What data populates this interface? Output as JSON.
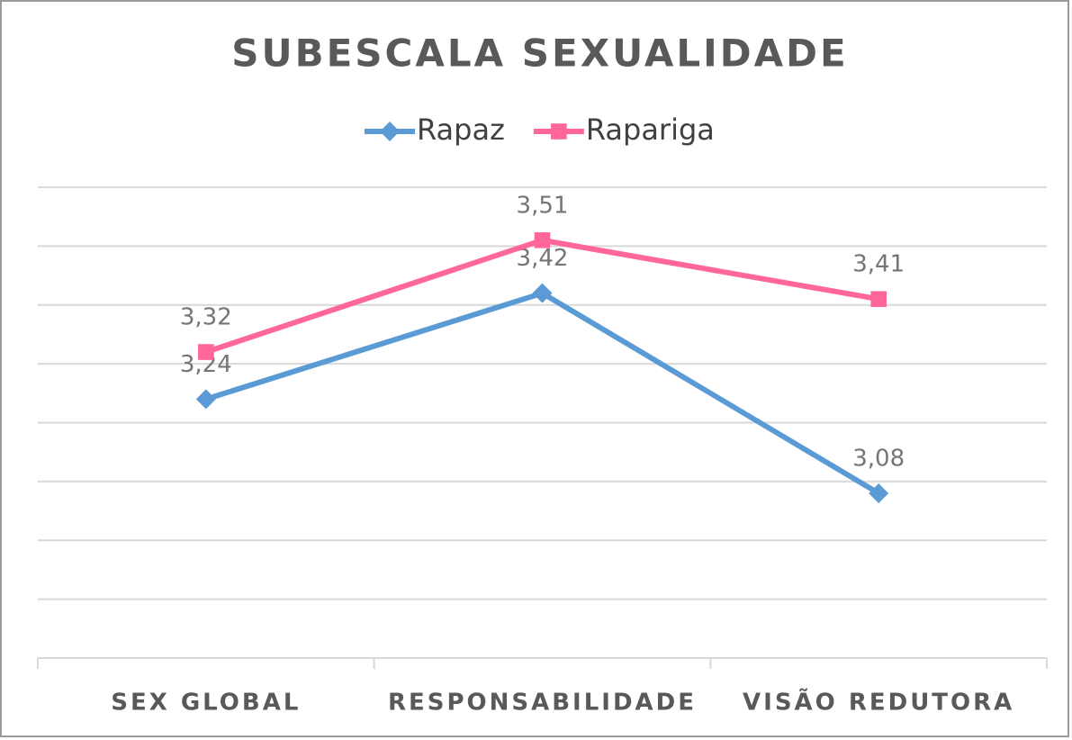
{
  "chart_data": {
    "type": "line",
    "title": "SUBESCALA SEXUALIDADE",
    "categories": [
      "SEX GLOBAL",
      "RESPONSABILIDADE",
      "VISÃO REDUTORA"
    ],
    "series": [
      {
        "name": "Rapaz",
        "color": "#5b9bd5",
        "marker": "diamond",
        "values": [
          3.24,
          3.42,
          3.08
        ],
        "value_labels": [
          "3,24",
          "3,42",
          "3,08"
        ]
      },
      {
        "name": "Rapariga",
        "color": "#ff6699",
        "marker": "square",
        "values": [
          3.32,
          3.51,
          3.41
        ],
        "value_labels": [
          "3,32",
          "3,51",
          "3,41"
        ]
      }
    ],
    "ylim": [
      2.8,
      3.6
    ],
    "yticks": [
      2.8,
      2.9,
      3,
      3.1,
      3.2,
      3.3,
      3.4,
      3.5,
      3.6
    ],
    "grid": true,
    "legend": "top"
  }
}
